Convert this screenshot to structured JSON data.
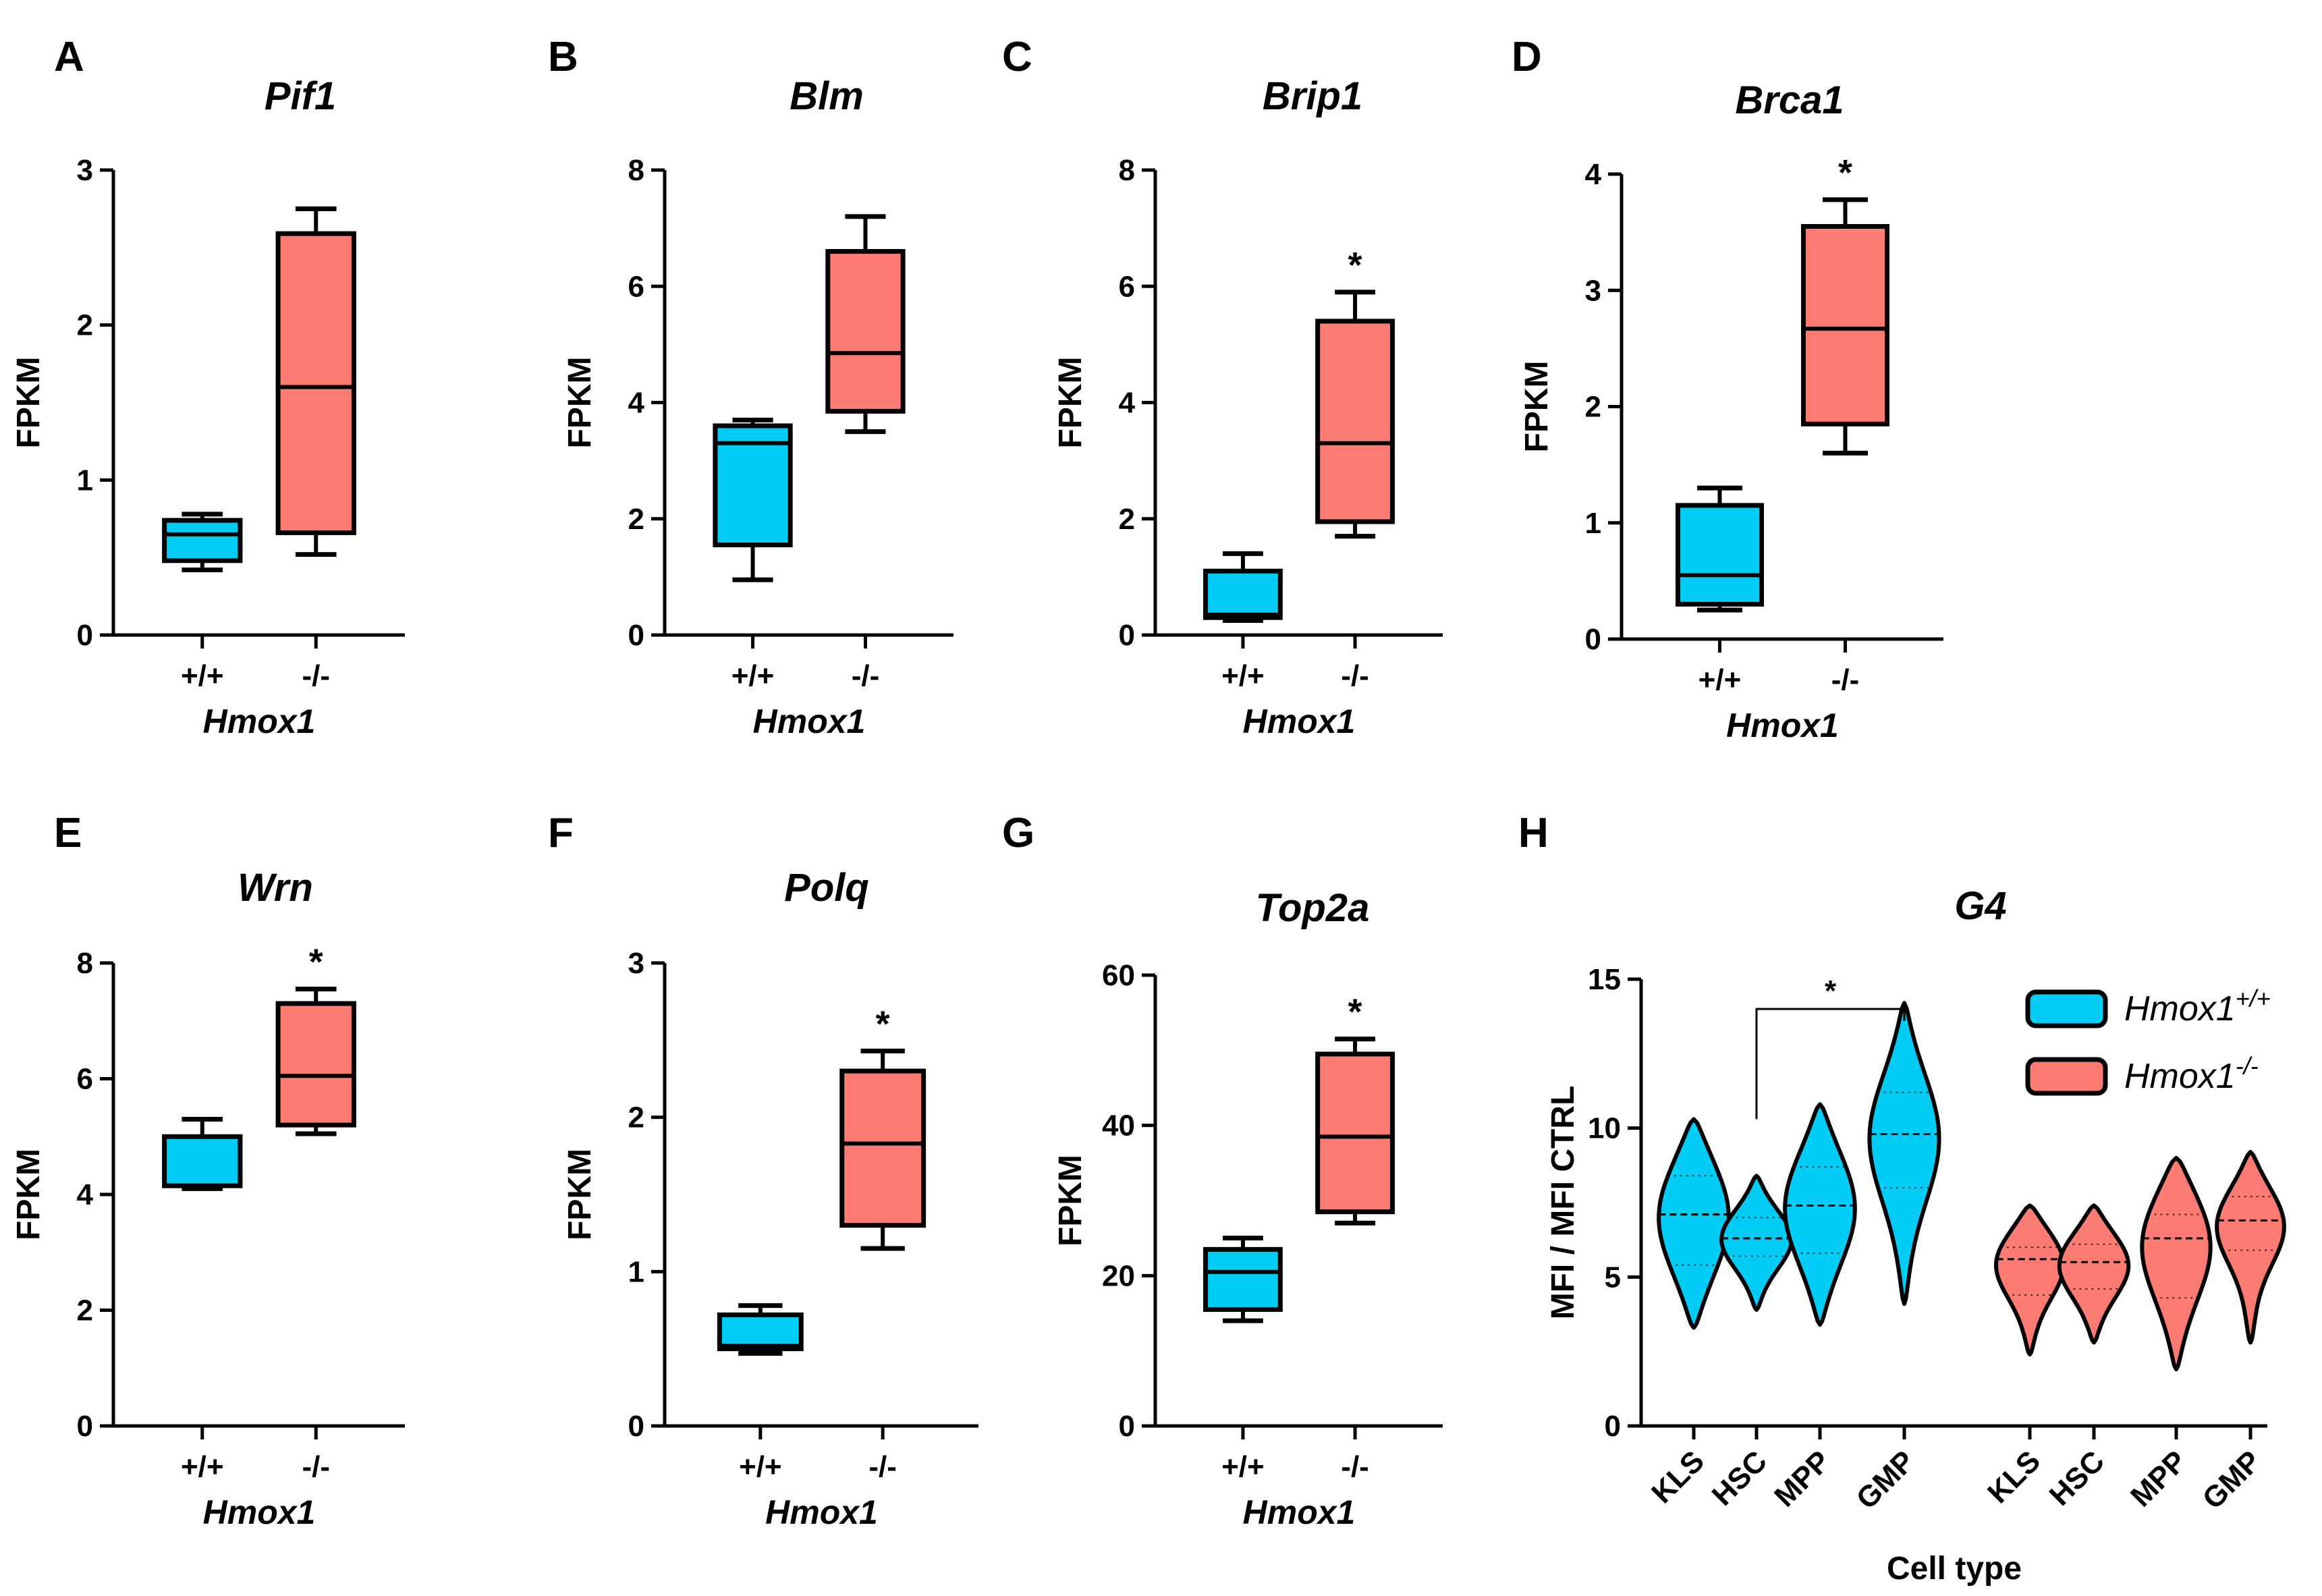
{
  "colors": {
    "wt": "#00ccf5",
    "ko": "#fc7b73",
    "stroke": "#000000"
  },
  "chart_data": [
    {
      "panel": "A",
      "type": "box",
      "title": "Pif1",
      "ylabel": "FPKM",
      "xlabel": "Hmox1",
      "categories": [
        "+/+",
        "-/-"
      ],
      "ylim": [
        0,
        3
      ],
      "yticks": [
        "0",
        "1",
        "2",
        "3"
      ],
      "significance": "",
      "boxes": [
        {
          "min": 0.42,
          "q1": 0.48,
          "median": 0.65,
          "q3": 0.74,
          "max": 0.78
        },
        {
          "min": 0.52,
          "q1": 0.66,
          "median": 1.6,
          "q3": 2.59,
          "max": 2.75
        }
      ]
    },
    {
      "panel": "B",
      "type": "box",
      "title": "Blm",
      "ylabel": "FPKM",
      "xlabel": "Hmox1",
      "categories": [
        "+/+",
        "-/-"
      ],
      "ylim": [
        0,
        8
      ],
      "yticks": [
        "0",
        "2",
        "4",
        "6",
        "8"
      ],
      "significance": "",
      "boxes": [
        {
          "min": 0.95,
          "q1": 1.55,
          "median": 3.3,
          "q3": 3.6,
          "max": 3.7
        },
        {
          "min": 3.5,
          "q1": 3.85,
          "median": 4.85,
          "q3": 6.6,
          "max": 7.2
        }
      ]
    },
    {
      "panel": "C",
      "type": "box",
      "title": "Brip1",
      "ylabel": "FPKM",
      "xlabel": "Hmox1",
      "categories": [
        "+/+",
        "-/-"
      ],
      "ylim": [
        0,
        8
      ],
      "yticks": [
        "0",
        "2",
        "4",
        "6",
        "8"
      ],
      "significance": "*",
      "boxes": [
        {
          "min": 0.25,
          "q1": 0.3,
          "median": 0.35,
          "q3": 1.1,
          "max": 1.4
        },
        {
          "min": 1.7,
          "q1": 1.95,
          "median": 3.3,
          "q3": 5.4,
          "max": 5.9
        }
      ]
    },
    {
      "panel": "D",
      "type": "box",
      "title": "Brca1",
      "ylabel": "FPKM",
      "xlabel": "Hmox1",
      "categories": [
        "+/+",
        "-/-"
      ],
      "ylim": [
        0,
        4
      ],
      "yticks": [
        "0",
        "1",
        "2",
        "3",
        "4"
      ],
      "significance": "*",
      "boxes": [
        {
          "min": 0.25,
          "q1": 0.3,
          "median": 0.55,
          "q3": 1.15,
          "max": 1.3
        },
        {
          "min": 1.6,
          "q1": 1.85,
          "median": 2.67,
          "q3": 3.55,
          "max": 3.78
        }
      ]
    },
    {
      "panel": "E",
      "type": "box",
      "title": "Wrn",
      "ylabel": "FPKM",
      "xlabel": "Hmox1",
      "categories": [
        "+/+",
        "-/-"
      ],
      "ylim": [
        0,
        8
      ],
      "yticks": [
        "0",
        "2",
        "4",
        "6",
        "8"
      ],
      "significance": "*",
      "boxes": [
        {
          "min": 4.1,
          "q1": 4.15,
          "median": 4.15,
          "q3": 5.0,
          "max": 5.3
        },
        {
          "min": 5.05,
          "q1": 5.2,
          "median": 6.05,
          "q3": 7.3,
          "max": 7.55
        }
      ]
    },
    {
      "panel": "F",
      "type": "box",
      "title": "Polq",
      "ylabel": "FPKM",
      "xlabel": "Hmox1",
      "categories": [
        "+/+",
        "-/-"
      ],
      "ylim": [
        0,
        3
      ],
      "yticks": [
        "0",
        "1",
        "2",
        "3"
      ],
      "significance": "*",
      "boxes": [
        {
          "min": 0.47,
          "q1": 0.5,
          "median": 0.52,
          "q3": 0.72,
          "max": 0.78
        },
        {
          "min": 1.15,
          "q1": 1.3,
          "median": 1.83,
          "q3": 2.3,
          "max": 2.43
        }
      ]
    },
    {
      "panel": "G",
      "type": "box",
      "title": "Top2a",
      "ylabel": "FPKM",
      "xlabel": "Hmox1",
      "categories": [
        "+/+",
        "-/-"
      ],
      "ylim": [
        0,
        60
      ],
      "yticks": [
        "0",
        "20",
        "40",
        "60"
      ],
      "significance": "*",
      "boxes": [
        {
          "min": 14,
          "q1": 15.5,
          "median": 20.5,
          "q3": 23.5,
          "max": 25
        },
        {
          "min": 27,
          "q1": 28.5,
          "median": 38.5,
          "q3": 49.5,
          "max": 51.5
        }
      ]
    },
    {
      "panel": "H",
      "type": "violin",
      "title": "G4",
      "ylabel": "MFI / MFI CTRL",
      "xlabel": "Cell type",
      "ylim": [
        0,
        15
      ],
      "yticks": [
        "0",
        "5",
        "10",
        "15"
      ],
      "comparison": {
        "from": "HSC",
        "to": "GMP",
        "group": "Hmox1+/+",
        "label": "*"
      },
      "legend": [
        {
          "name": "Hmox1",
          "sup": "+/+",
          "color_key": "wt"
        },
        {
          "name": "Hmox1",
          "sup": "-/-",
          "color_key": "ko"
        }
      ],
      "violins": [
        {
          "label": "KLS",
          "group": "wt",
          "min": 3.3,
          "max": 10.3,
          "median": 7.1,
          "q1": 5.4,
          "q3": 8.4
        },
        {
          "label": "HSC",
          "group": "wt",
          "min": 3.9,
          "max": 8.4,
          "median": 6.3,
          "q3": 7.0,
          "q1": 5.7
        },
        {
          "label": "MPP",
          "group": "wt",
          "min": 3.4,
          "max": 10.8,
          "median": 7.4,
          "q1": 5.8,
          "q3": 8.7
        },
        {
          "label": "GMP",
          "group": "wt",
          "min": 4.1,
          "max": 14.2,
          "median": 9.8,
          "q1": 8.0,
          "q3": 11.2
        },
        {
          "label": "KLS",
          "group": "ko",
          "min": 2.4,
          "max": 7.4,
          "median": 5.6,
          "q1": 4.4,
          "q3": 6.0
        },
        {
          "label": "HSC",
          "group": "ko",
          "min": 2.8,
          "max": 7.4,
          "median": 5.5,
          "q1": 4.6,
          "q3": 6.1
        },
        {
          "label": "MPP",
          "group": "ko",
          "min": 1.9,
          "max": 9.0,
          "median": 6.3,
          "q1": 4.3,
          "q3": 7.1
        },
        {
          "label": "GMP",
          "group": "ko",
          "min": 2.8,
          "max": 9.2,
          "median": 6.9,
          "q1": 5.9,
          "q3": 7.7
        }
      ]
    }
  ]
}
